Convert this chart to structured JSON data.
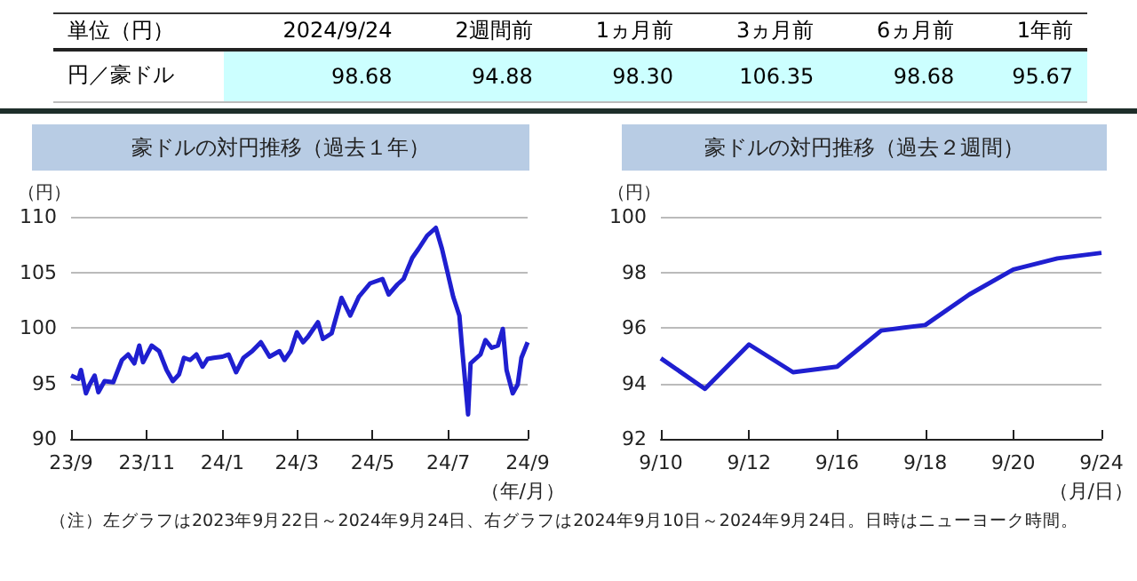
{
  "chart_data": [
    {
      "type": "other",
      "title": "単位（円）",
      "categories": [
        "2024/9/24",
        "2週間前",
        "1ヵ月前",
        "3ヵ月前",
        "6ヵ月前",
        "1年前"
      ],
      "series": [
        {
          "name": "円／豪ドル",
          "color": "#ccffff",
          "values": [
            98.68,
            94.88,
            98.3,
            106.35,
            98.68,
            95.67
          ],
          "value_labels": [
            "98.68",
            "94.88",
            "98.30",
            "106.35",
            "98.68",
            "95.67"
          ]
        }
      ],
      "data_labels": true
    },
    {
      "type": "line",
      "title": "豪ドルの対円推移（過去１年）",
      "ylabel": "（円）",
      "xlabel": "（年/月）",
      "x": [
        "2023-09-22",
        "2023-09-28",
        "2023-09-30",
        "2023-10-04",
        "2023-10-07",
        "2023-10-11",
        "2023-10-14",
        "2023-10-19",
        "2023-10-26",
        "2023-11-02",
        "2023-11-07",
        "2023-11-12",
        "2023-11-16",
        "2023-11-19",
        "2023-11-26",
        "2023-12-02",
        "2023-12-08",
        "2023-12-13",
        "2023-12-18",
        "2023-12-22",
        "2023-12-27",
        "2024-01-01",
        "2024-01-06",
        "2024-01-10",
        "2024-01-15",
        "2024-01-22",
        "2024-01-27",
        "2024-02-02",
        "2024-02-08",
        "2024-02-15",
        "2024-02-22",
        "2024-02-29",
        "2024-03-08",
        "2024-03-12",
        "2024-03-17",
        "2024-03-22",
        "2024-03-27",
        "2024-03-31",
        "2024-04-08",
        "2024-04-12",
        "2024-04-19",
        "2024-04-27",
        "2024-05-04",
        "2024-05-11",
        "2024-05-20",
        "2024-05-30",
        "2024-06-04",
        "2024-06-11",
        "2024-06-16",
        "2024-06-23",
        "2024-06-28",
        "2024-07-05",
        "2024-07-12",
        "2024-07-17",
        "2024-07-21",
        "2024-07-26",
        "2024-07-31",
        "2024-08-02",
        "2024-08-07",
        "2024-08-09",
        "2024-08-17",
        "2024-08-21",
        "2024-08-26",
        "2024-08-31",
        "2024-09-04",
        "2024-09-07",
        "2024-09-12",
        "2024-09-16",
        "2024-09-19",
        "2024-09-24"
      ],
      "series": [
        {
          "color": "#1f1fd0",
          "values": [
            95.7,
            95.4,
            96.2,
            94.1,
            94.9,
            95.7,
            94.2,
            95.2,
            95.1,
            97.1,
            97.6,
            96.8,
            98.4,
            96.9,
            98.4,
            97.9,
            96.2,
            95.2,
            95.8,
            97.3,
            97.1,
            97.6,
            96.5,
            97.2,
            97.3,
            97.4,
            97.6,
            96.0,
            97.3,
            97.9,
            98.7,
            97.4,
            97.9,
            97.1,
            97.9,
            99.6,
            98.7,
            99.2,
            100.5,
            99.0,
            99.5,
            102.7,
            101.1,
            102.8,
            104.0,
            104.4,
            103.0,
            103.9,
            104.4,
            106.3,
            107.1,
            108.3,
            109.0,
            107.1,
            105.2,
            102.8,
            101.1,
            98.4,
            92.2,
            96.8,
            97.6,
            98.9,
            98.2,
            98.4,
            99.9,
            96.2,
            94.1,
            94.9,
            97.3,
            98.7
          ]
        }
      ],
      "xlim": [
        "2023-09-22",
        "2024-09-24"
      ],
      "xticks": [
        {
          "value": "2023-09-22",
          "label": "23/9"
        },
        {
          "value": "2023-11-22",
          "label": "23/11"
        },
        {
          "value": "2024-01-22",
          "label": "24/1"
        },
        {
          "value": "2024-03-22",
          "label": "24/3"
        },
        {
          "value": "2024-05-22",
          "label": "24/5"
        },
        {
          "value": "2024-07-22",
          "label": "24/7"
        },
        {
          "value": "2024-09-24",
          "label": "24/9"
        }
      ],
      "ylim": [
        90,
        110
      ],
      "yticks": [
        90,
        95,
        100,
        105,
        110
      ],
      "grid": "y",
      "marker": "none",
      "line_style": "solid",
      "annotations": [
        "（注）左グラフは2023年9月22日～2024年9月24日、右グラフは2024年9月10日～2024年9月24日。日時はニューヨーク時間。"
      ]
    },
    {
      "type": "line",
      "title": "豪ドルの対円推移（過去２週間）",
      "ylabel": "（円）",
      "xlabel": "（月/日）",
      "categories": [
        "9/10",
        null,
        "9/12",
        null,
        "9/16",
        null,
        "9/18",
        null,
        "9/20",
        null,
        "9/24"
      ],
      "series": [
        {
          "color": "#1f1fd0",
          "values": [
            94.9,
            93.8,
            95.4,
            94.4,
            94.6,
            95.9,
            96.1,
            97.2,
            98.1,
            98.5,
            98.7
          ]
        }
      ],
      "ylim": [
        92,
        100
      ],
      "yticks": [
        92,
        94,
        96,
        98,
        100
      ],
      "grid": "y",
      "marker": "none",
      "line_style": "solid"
    }
  ]
}
